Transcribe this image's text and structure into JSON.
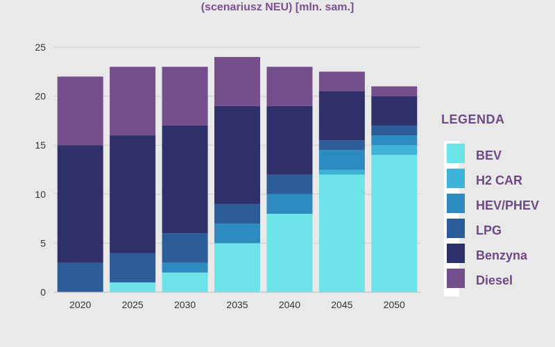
{
  "chart_data": {
    "type": "bar",
    "stacked": true,
    "subtitle": "(scenariusz NEU) [mln. sam.]",
    "categories": [
      "2020",
      "2025",
      "2030",
      "2035",
      "2040",
      "2045",
      "2050"
    ],
    "ylim": [
      0,
      25
    ],
    "yticks": [
      "0",
      "5",
      "10",
      "15",
      "20",
      "25"
    ],
    "grid": true,
    "legend_title": "LEGENDA",
    "legend_position": "right",
    "series": [
      {
        "name": "BEV",
        "color": "#6ee3ea",
        "values": [
          0,
          1,
          2,
          5,
          8,
          12,
          14
        ]
      },
      {
        "name": "H2 CAR",
        "color": "#3fb2d8",
        "values": [
          0,
          0,
          0,
          0,
          0,
          0.5,
          1
        ]
      },
      {
        "name": "HEV/PHEV",
        "color": "#2e8bbf",
        "values": [
          0,
          0,
          1,
          2,
          2,
          2,
          1
        ]
      },
      {
        "name": "LPG",
        "color": "#2d5d98",
        "values": [
          3,
          3,
          3,
          2,
          2,
          1,
          1
        ]
      },
      {
        "name": "Benzyna",
        "color": "#2f2f69",
        "values": [
          12,
          12,
          11,
          10,
          7,
          5,
          3
        ]
      },
      {
        "name": "Diesel",
        "color": "#754e8c",
        "values": [
          7,
          7,
          6,
          5,
          4,
          2,
          1
        ]
      }
    ]
  }
}
